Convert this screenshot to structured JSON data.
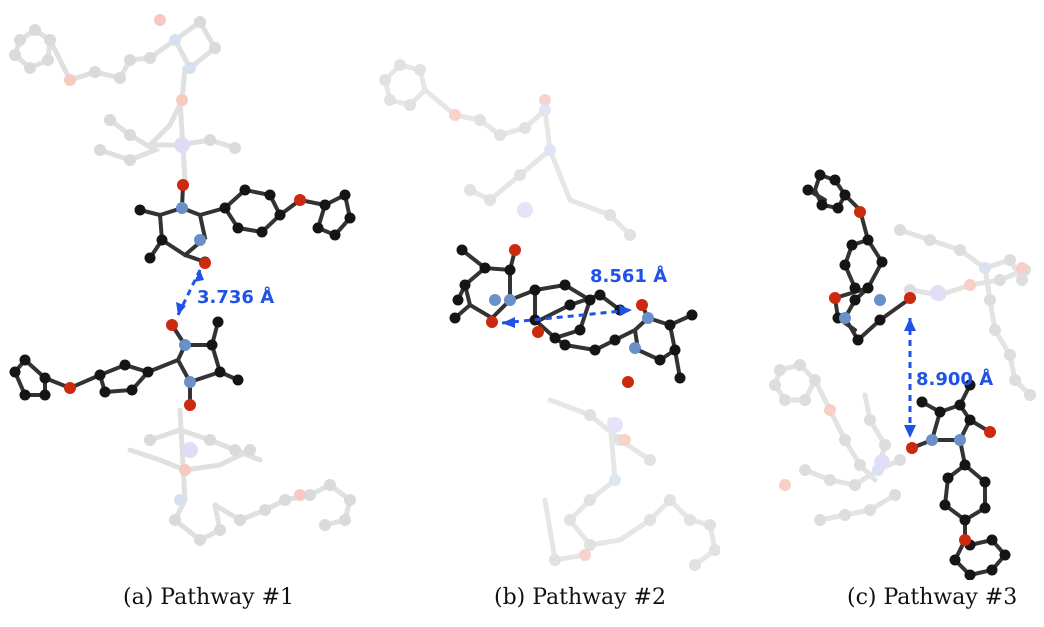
{
  "panels": [
    {
      "id": "a",
      "distance": "3.736 Å",
      "caption": "(a) Pathway #1"
    },
    {
      "id": "b",
      "distance": "8.561 Å",
      "caption": "(b) Pathway #2"
    },
    {
      "id": "c",
      "distance": "8.900 Å",
      "caption": "(c) Pathway #3"
    }
  ],
  "colors": {
    "carbon": "#151515",
    "oxygen": "#cc2a0e",
    "nitrogen": "#6a90c8",
    "metal": "#8f80d8",
    "faded_atom": "#bdbdbd",
    "faded_bond": "#c8c8c8",
    "distance_arrow": "#1f52e6"
  }
}
